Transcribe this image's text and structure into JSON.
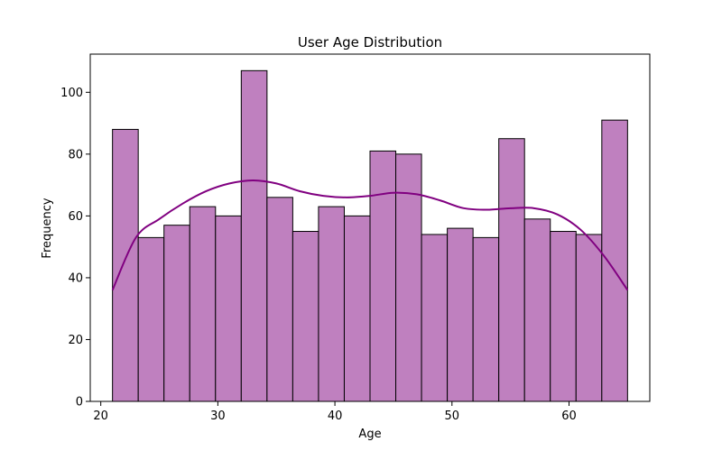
{
  "chart_data": {
    "type": "bar",
    "title": "User Age Distribution",
    "xlabel": "Age",
    "ylabel": "Frequency",
    "bin_start": 21,
    "bin_width": 2.2,
    "values": [
      88,
      53,
      57,
      63,
      60,
      107,
      66,
      55,
      63,
      60,
      81,
      80,
      54,
      56,
      53,
      85,
      59,
      55,
      54,
      91
    ],
    "xlim": [
      19.1,
      66.9
    ],
    "ylim": [
      0,
      112.35
    ],
    "xticks": [
      20,
      30,
      40,
      50,
      60
    ],
    "yticks": [
      0,
      20,
      40,
      60,
      80,
      100
    ],
    "grid": false,
    "bar_color": "#bf80bf",
    "bar_edge_color": "#000000",
    "kde_color": "#800080",
    "kde": {
      "x": [
        21,
        23,
        25,
        27,
        29,
        31,
        33,
        35,
        37,
        39,
        41,
        43,
        45,
        47,
        49,
        51,
        53,
        55,
        57,
        59,
        61,
        63,
        65
      ],
      "y": [
        36,
        53,
        59,
        64,
        68,
        70.5,
        71.5,
        70.5,
        68,
        66.5,
        66,
        66.5,
        67.5,
        67,
        65,
        62.5,
        62,
        62.5,
        62.5,
        60.5,
        55.5,
        47,
        36
      ]
    }
  }
}
